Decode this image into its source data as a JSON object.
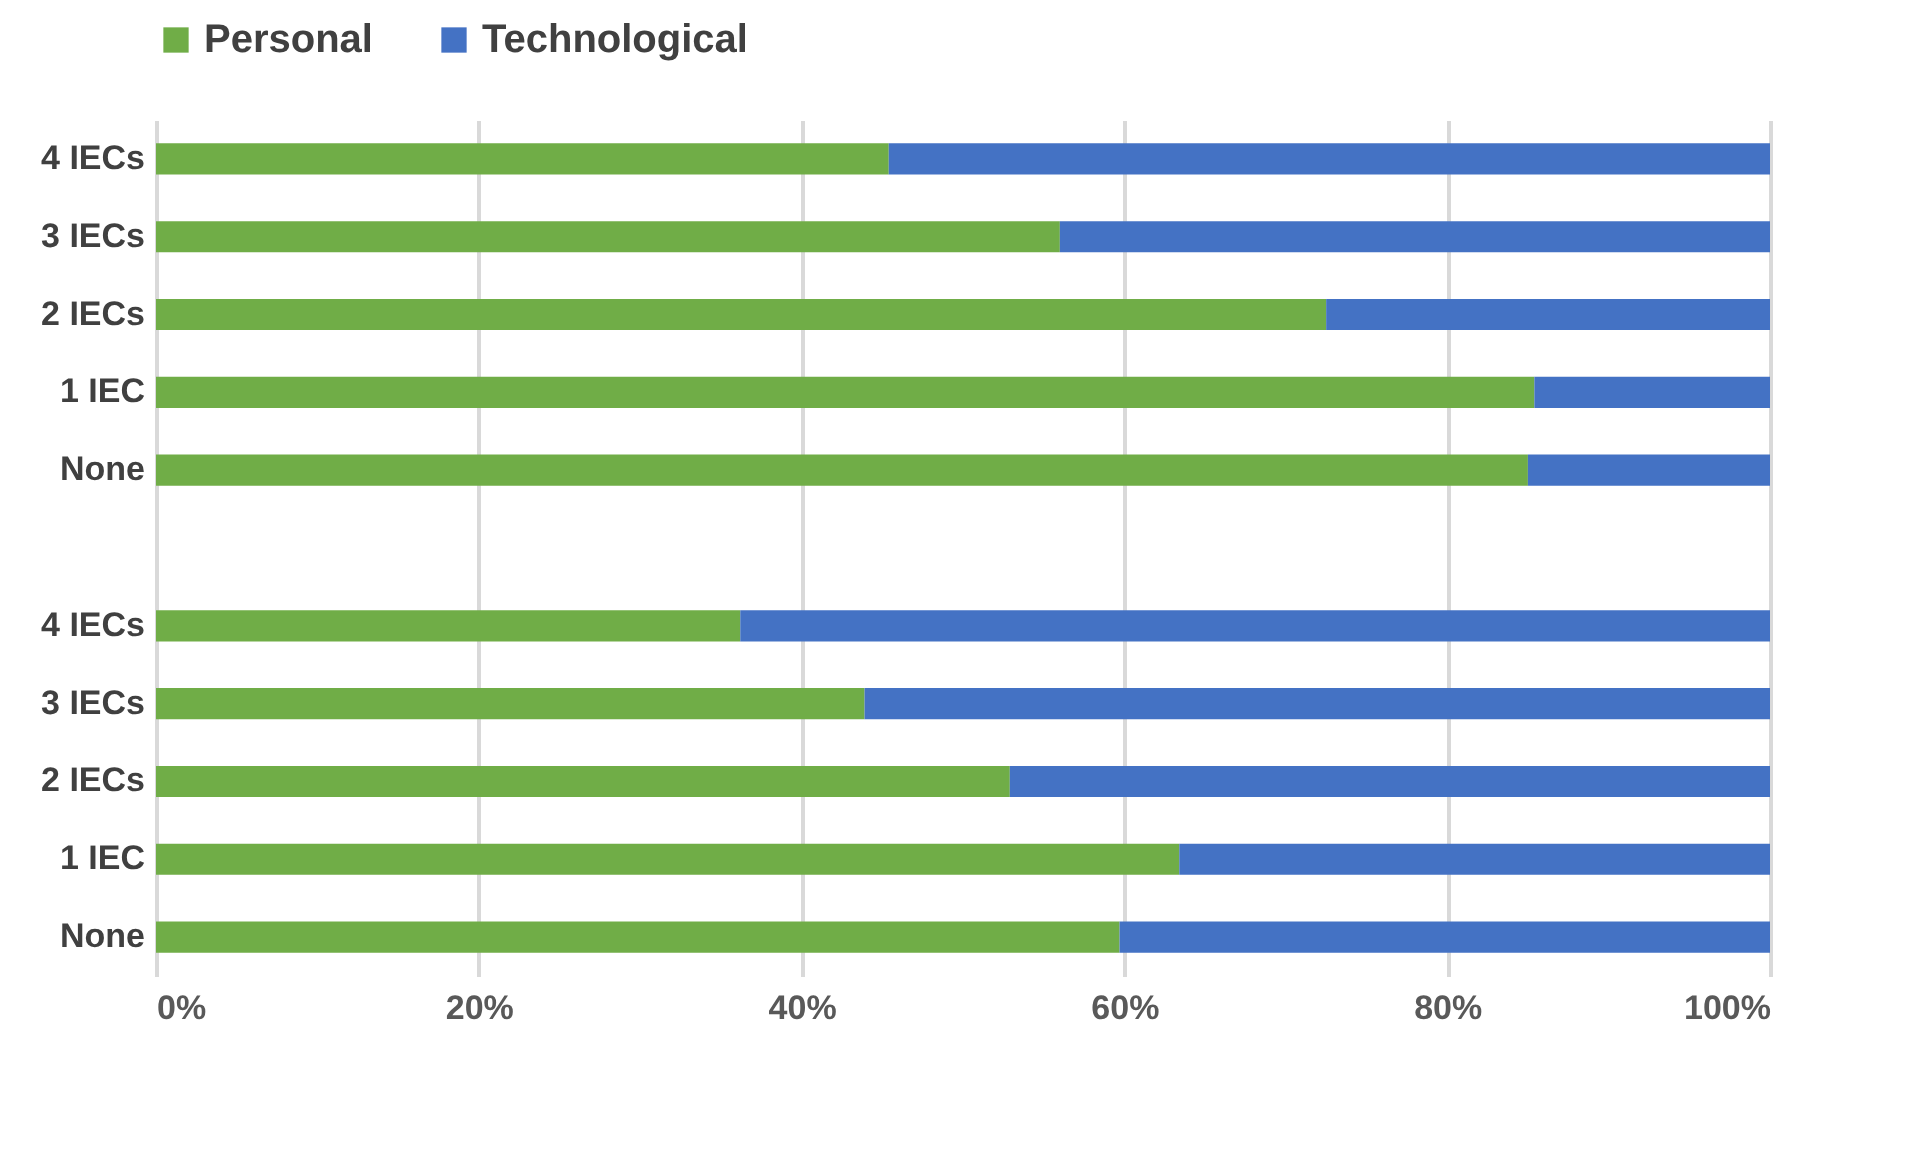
{
  "chart_data": {
    "type": "bar",
    "orientation": "horizontal",
    "stacked": true,
    "categories": [
      "4 IECs",
      "3 IECs",
      "2 IECs",
      "1 IEC",
      "None",
      null,
      "4 IECs",
      "3 IECs",
      "2 IECs",
      "1 IEC",
      "None"
    ],
    "series": [
      {
        "name": "Personal",
        "color": "#70ad47",
        "values": [
          45.4,
          56.0,
          72.5,
          85.4,
          85.0,
          null,
          36.2,
          43.9,
          52.9,
          63.4,
          59.7
        ]
      },
      {
        "name": "Technological",
        "color": "#4472c4",
        "values": [
          54.6,
          44.0,
          27.5,
          14.6,
          15.0,
          null,
          63.8,
          56.1,
          47.1,
          36.6,
          40.3
        ]
      }
    ],
    "xlim": [
      0,
      100
    ],
    "xticks": [
      {
        "value": 0,
        "label": "0%"
      },
      {
        "value": 20,
        "label": "20%"
      },
      {
        "value": 40,
        "label": "40%"
      },
      {
        "value": 60,
        "label": "60%"
      },
      {
        "value": 80,
        "label": "80%"
      },
      {
        "value": 100,
        "label": "100%"
      }
    ],
    "grid": "x",
    "legend": "top"
  }
}
